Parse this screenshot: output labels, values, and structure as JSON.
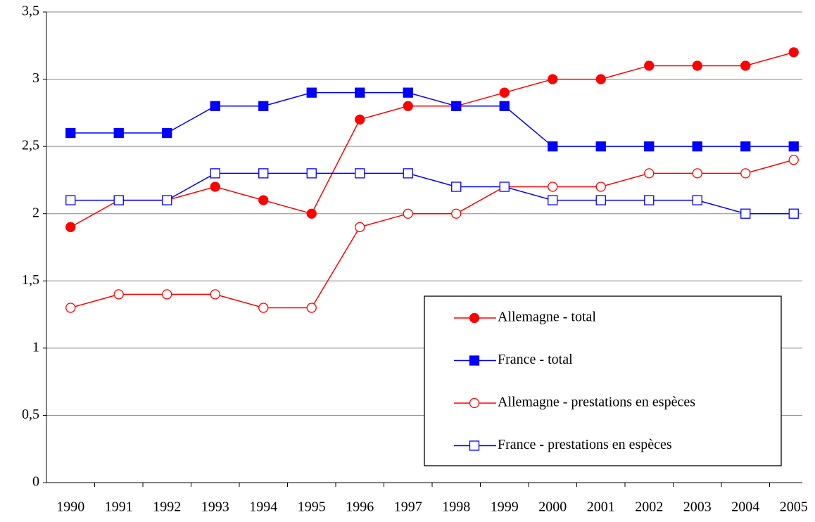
{
  "chart_data": {
    "type": "line",
    "categories": [
      "1990",
      "1991",
      "1992",
      "1993",
      "1994",
      "1995",
      "1996",
      "1997",
      "1998",
      "1999",
      "2000",
      "2001",
      "2002",
      "2003",
      "2004",
      "2005"
    ],
    "series": [
      {
        "name": "Allemagne - total",
        "color": "#ff0000",
        "marker": "circle",
        "filled": true,
        "values": [
          1.9,
          2.1,
          2.1,
          2.2,
          2.1,
          2.0,
          2.7,
          2.8,
          2.8,
          2.9,
          3.0,
          3.0,
          3.1,
          3.1,
          3.1,
          3.2
        ]
      },
      {
        "name": "France - total",
        "color": "#0000ff",
        "marker": "square",
        "filled": true,
        "values": [
          2.6,
          2.6,
          2.6,
          2.8,
          2.8,
          2.9,
          2.9,
          2.9,
          2.8,
          2.8,
          2.5,
          2.5,
          2.5,
          2.5,
          2.5,
          2.5
        ]
      },
      {
        "name": "Allemagne - prestations en espèces",
        "color": "#ff0000",
        "marker": "circle",
        "filled": false,
        "values": [
          1.3,
          1.4,
          1.4,
          1.4,
          1.3,
          1.3,
          1.9,
          2.0,
          2.0,
          2.2,
          2.2,
          2.2,
          2.3,
          2.3,
          2.3,
          2.4
        ]
      },
      {
        "name": "France - prestations en espèces",
        "color": "#0000ff",
        "marker": "square",
        "filled": false,
        "values": [
          2.1,
          2.1,
          2.1,
          2.3,
          2.3,
          2.3,
          2.3,
          2.3,
          2.2,
          2.2,
          2.1,
          2.1,
          2.1,
          2.1,
          2.0,
          2.0
        ]
      }
    ],
    "ylim": [
      0,
      3.5
    ],
    "yticks": [
      0,
      {
        "value": 0.5,
        "label": "0,5"
      },
      1,
      {
        "value": 1.5,
        "label": "1,5"
      },
      2,
      {
        "value": 2.5,
        "label": "2,5"
      },
      3,
      {
        "value": 3.5,
        "label": "3,5"
      }
    ],
    "grid": true
  }
}
